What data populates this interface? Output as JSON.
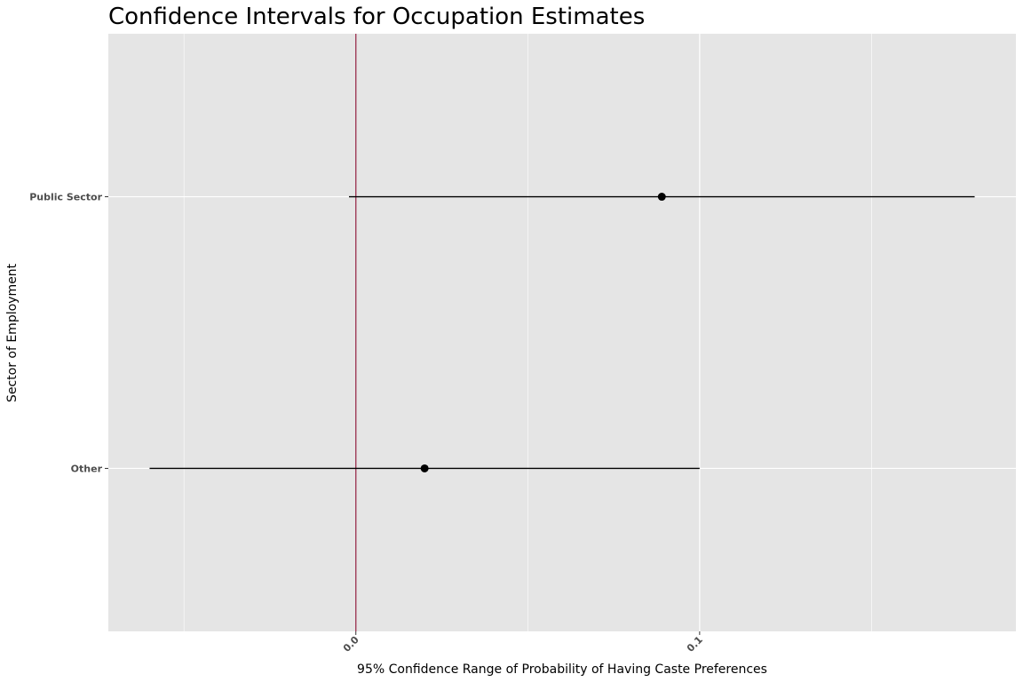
{
  "chart_data": {
    "type": "errorbar",
    "title": "Confidence Intervals for Occupation Estimates",
    "xlabel": "95% Confidence Range of Probability of Having Caste Preferences",
    "ylabel": "Sector of Employment",
    "xlim": [
      -0.072,
      0.192
    ],
    "x_ticks": [
      0.0,
      0.1
    ],
    "x_tick_labels": [
      "0.0",
      "0.1"
    ],
    "x_minor_ticks": [
      -0.05,
      0.05,
      0.15
    ],
    "categories": [
      "Public Sector",
      "Other"
    ],
    "points": [
      {
        "category": "Public Sector",
        "estimate": 0.089,
        "lower": -0.002,
        "upper": 0.18
      },
      {
        "category": "Other",
        "estimate": 0.02,
        "lower": -0.06,
        "upper": 0.1
      }
    ],
    "reference_line": {
      "x": 0.0,
      "color": "#9e3a57"
    },
    "grid": true,
    "legend": "none",
    "colors": {
      "panel_background": "#e5e5e5",
      "grid": "#ffffff",
      "point": "#000000",
      "interval": "#000000"
    }
  }
}
